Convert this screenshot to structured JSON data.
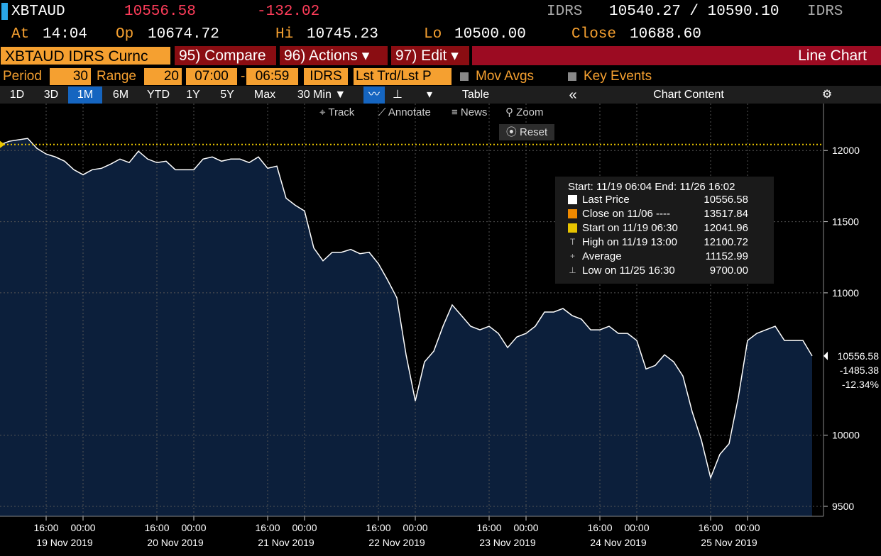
{
  "header": {
    "ticker": "XBTAUD",
    "last": "10556.58",
    "change": "-132.02",
    "source_left": "IDRS",
    "bid_ask": "10540.27 / 10590.10",
    "source_right": "IDRS"
  },
  "quote": {
    "at_label": "At",
    "at": "14:04",
    "open_label": "Op",
    "open": "10674.72",
    "high_label": "Hi",
    "high": "10745.23",
    "low_label": "Lo",
    "low": "10500.00",
    "close_label": "Close",
    "close": "10688.60"
  },
  "toolbar": {
    "security": "XBTAUD IDRS Curnc",
    "compare": "95) Compare",
    "actions": "96) Actions ▾",
    "edit": "97) Edit ▾",
    "chart_name": "Line Chart"
  },
  "settings": {
    "period_label": "Period",
    "period": "30",
    "range_label": "Range",
    "range": "20",
    "start_time": "07:00",
    "dash": "-",
    "end_time": "06:59",
    "source": "IDRS",
    "price_type": "Lst Trd/Lst P",
    "mov_avgs": "Mov Avgs",
    "key_events": "Key Events"
  },
  "ranges": [
    "1D",
    "3D",
    "1M",
    "6M",
    "YTD",
    "1Y",
    "5Y",
    "Max"
  ],
  "view": {
    "interval": "30 Min ▼",
    "table": "Table",
    "collapse": "«",
    "chart_content": "Chart Content"
  },
  "chart_tools": {
    "track": "Track",
    "annotate": "Annotate",
    "news": "News",
    "zoom": "Zoom",
    "reset": "Reset"
  },
  "chart_data": {
    "type": "area",
    "grid": true,
    "x": [
      0,
      2,
      4,
      6,
      8,
      10,
      12,
      14,
      16,
      18,
      20,
      22,
      24,
      26,
      28,
      30,
      32,
      34,
      36,
      38,
      40,
      42,
      44,
      46,
      48,
      50,
      52,
      54,
      56,
      58,
      60,
      62,
      64,
      66,
      68,
      70,
      72,
      74,
      76,
      78,
      80,
      82,
      84,
      86,
      88,
      90,
      92,
      94,
      96,
      98,
      100,
      102,
      104,
      106,
      108,
      110,
      112,
      114,
      116,
      118,
      120,
      122,
      124,
      126,
      128,
      130,
      132,
      134,
      136,
      138,
      140,
      142,
      144,
      146,
      148,
      150,
      152,
      154,
      156,
      158,
      160,
      162,
      164,
      166,
      168,
      170,
      172,
      174,
      176
    ],
    "series": [
      {
        "name": "Last Price",
        "color": "#ffffff",
        "fill": "#0c1f3b",
        "values": [
          12040,
          12065,
          12075,
          12085,
          12015,
          11975,
          11955,
          11925,
          11865,
          11830,
          11865,
          11875,
          11905,
          11940,
          11915,
          11995,
          11940,
          11915,
          11925,
          11865,
          11865,
          11865,
          11940,
          11955,
          11925,
          11940,
          11940,
          11915,
          11955,
          11875,
          11890,
          11665,
          11615,
          11575,
          11315,
          11225,
          11285,
          11285,
          11305,
          11275,
          11285,
          11205,
          11090,
          10965,
          10565,
          10240,
          10515,
          10590,
          10765,
          10915,
          10840,
          10765,
          10740,
          10765,
          10715,
          10615,
          10690,
          10715,
          10765,
          10865,
          10865,
          10890,
          10840,
          10815,
          10740,
          10740,
          10765,
          10715,
          10715,
          10665,
          10465,
          10490,
          10565,
          10515,
          10415,
          10165,
          9965,
          9700,
          9865,
          9940,
          10265,
          10665,
          10715,
          10740,
          10765,
          10665,
          10665,
          10665,
          10556.58
        ]
      }
    ],
    "reference_line": {
      "value": 12041.96,
      "color": "#e8c400"
    },
    "xlim": [
      0,
      178
    ],
    "ylim": [
      9430,
      12330
    ],
    "yticks": [
      9500,
      10000,
      11000,
      11500,
      12000
    ],
    "xticks": [
      {
        "value": 10,
        "label": "16:00"
      },
      {
        "value": 18,
        "label": "00:00"
      },
      {
        "value": 34,
        "label": "16:00"
      },
      {
        "value": 42,
        "label": "00:00"
      },
      {
        "value": 58,
        "label": "16:00"
      },
      {
        "value": 66,
        "label": "00:00"
      },
      {
        "value": 82,
        "label": "16:00"
      },
      {
        "value": 90,
        "label": "00:00"
      },
      {
        "value": 106,
        "label": "16:00"
      },
      {
        "value": 114,
        "label": "00:00"
      },
      {
        "value": 130,
        "label": "16:00"
      },
      {
        "value": 138,
        "label": "00:00"
      },
      {
        "value": 154,
        "label": "16:00"
      },
      {
        "value": 162,
        "label": "00:00"
      }
    ],
    "x_groups": [
      "19 Nov 2019",
      "20 Nov 2019",
      "21 Nov 2019",
      "22 Nov 2019",
      "23 Nov 2019",
      "24 Nov 2019",
      "25 Nov 2019"
    ],
    "last_tag": [
      "10556.58",
      "-1485.38",
      "-12.34%"
    ],
    "legend_title": "Start: 11/19 06:04 End: 11/26 16:02",
    "stats": [
      {
        "label": "Last Price",
        "value": "10556.58",
        "color": "#ffffff"
      },
      {
        "label": "Close on 11/06 ----",
        "value": "13517.84",
        "color": "#f08a00"
      },
      {
        "label": "Start on 11/19 06:30",
        "value": "12041.96",
        "color": "#e8c400"
      },
      {
        "label": "High on 11/19 13:00",
        "value": "12100.72"
      },
      {
        "label": "Average",
        "value": "11152.99"
      },
      {
        "label": "Low on 11/25 16:30",
        "value": "9700.00"
      }
    ]
  }
}
